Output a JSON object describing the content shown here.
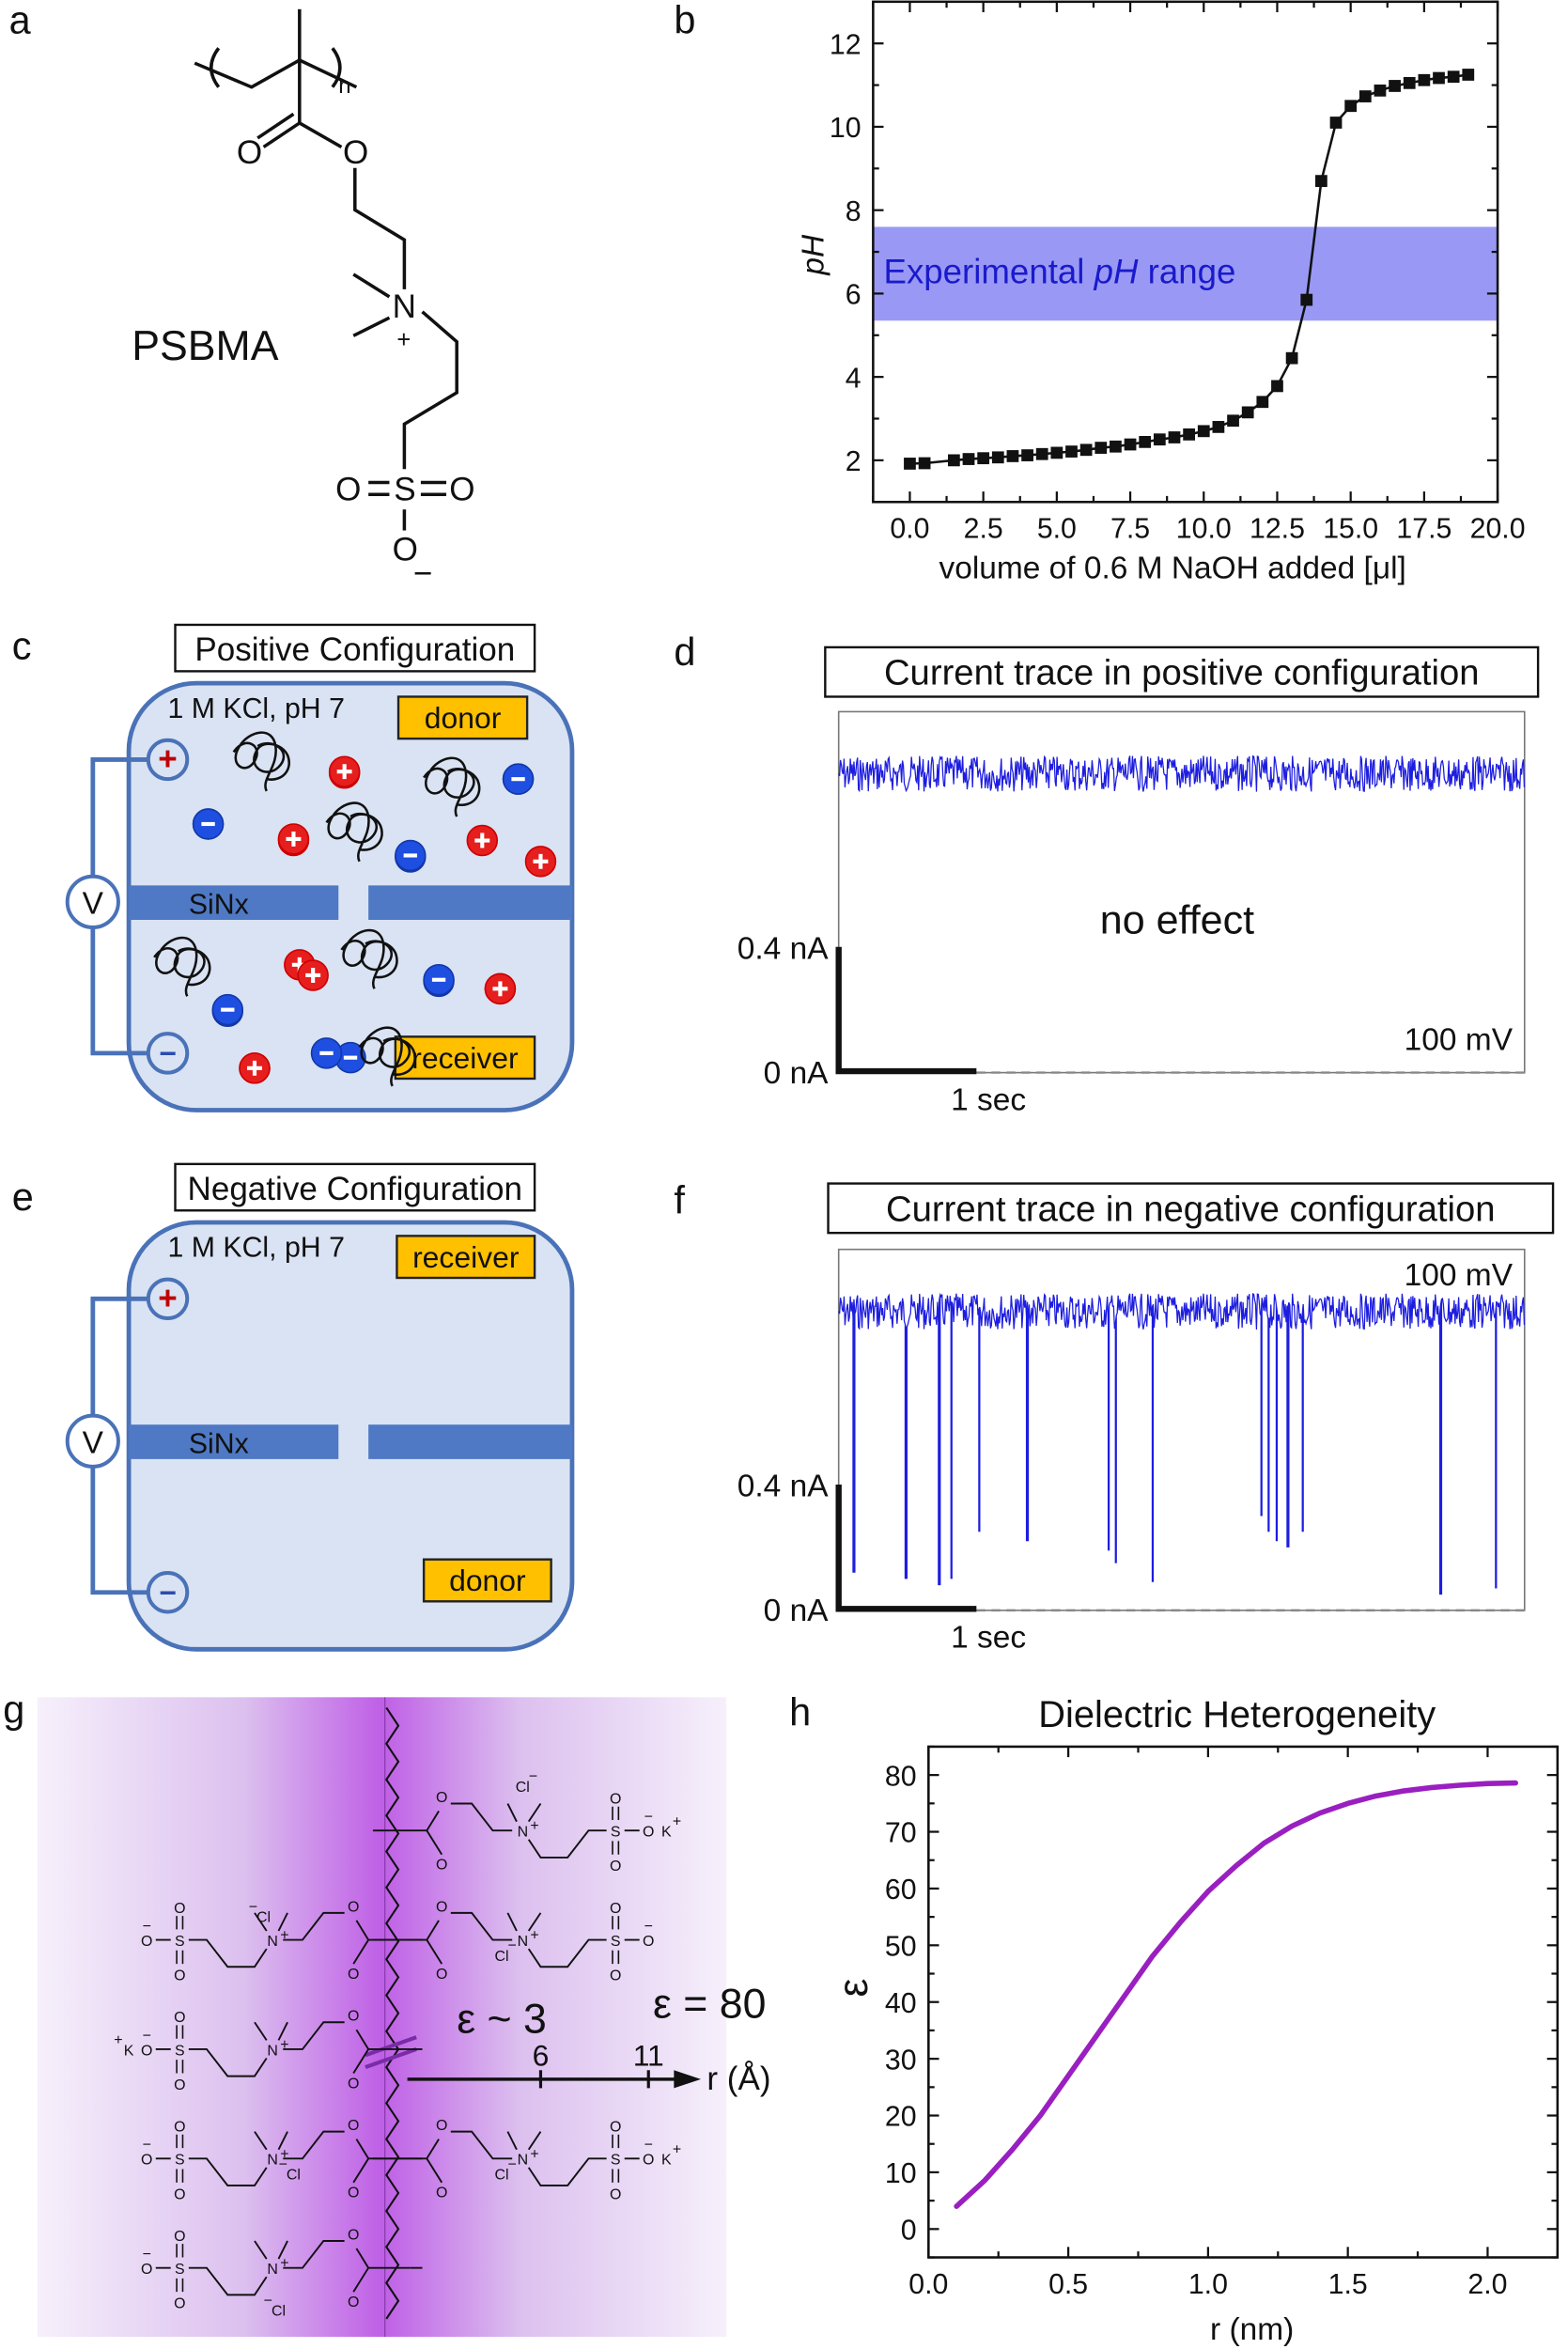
{
  "panel_labels": {
    "a": "a",
    "b": "b",
    "c": "c",
    "d": "d",
    "e": "e",
    "f": "f",
    "g": "g",
    "h": "h"
  },
  "panel_a": {
    "name": "PSBMA",
    "atoms": {
      "O_carbonyl": "O",
      "O_ester": "O",
      "N": "N",
      "N_charge": "+",
      "S": "S",
      "O_left": "O",
      "O_right": "O",
      "O_bottom": "O",
      "O_charge": "−",
      "repeat": "n"
    }
  },
  "panel_c": {
    "title": "Positive Configuration",
    "solution": "1 M KCl, pH 7",
    "top_chamber": "donor",
    "bottom_chamber": "receiver",
    "membrane": "SiNx",
    "voltmeter": "V",
    "electrode_top": "+",
    "electrode_bottom": "−"
  },
  "panel_d": {
    "title": "Current trace in positive configuration",
    "annotation": "no effect",
    "voltage": "100 mV",
    "scale_current_top": "0.4 nA",
    "scale_current_zero": "0 nA",
    "scale_time": "1 sec",
    "open_pore_current_nA": 0.95,
    "event_times_s": []
  },
  "panel_e": {
    "title": "Negative Configuration",
    "solution": "1 M KCl, pH 7",
    "top_chamber": "receiver",
    "bottom_chamber": "donor",
    "membrane": "SiNx",
    "voltmeter": "V",
    "electrode_top": "+",
    "electrode_bottom": "−"
  },
  "panel_f": {
    "title": "Current trace in negative configuration",
    "voltage": "100 mV",
    "scale_current_top": "0.4 nA",
    "scale_current_zero": "0 nA",
    "scale_time": "1 sec",
    "open_pore_current_nA": 0.95,
    "events": [
      {
        "t": 0.11,
        "min_nA": 0.12
      },
      {
        "t": 0.49,
        "min_nA": 0.1
      },
      {
        "t": 0.73,
        "min_nA": 0.08
      },
      {
        "t": 0.82,
        "min_nA": 0.1
      },
      {
        "t": 1.02,
        "min_nA": 0.25
      },
      {
        "t": 1.37,
        "min_nA": 0.22
      },
      {
        "t": 1.96,
        "min_nA": 0.19
      },
      {
        "t": 2.01,
        "min_nA": 0.15
      },
      {
        "t": 2.28,
        "min_nA": 0.09
      },
      {
        "t": 3.07,
        "min_nA": 0.3
      },
      {
        "t": 3.12,
        "min_nA": 0.25
      },
      {
        "t": 3.18,
        "min_nA": 0.22
      },
      {
        "t": 3.26,
        "min_nA": 0.2
      },
      {
        "t": 3.37,
        "min_nA": 0.25
      },
      {
        "t": 4.37,
        "min_nA": 0.05
      },
      {
        "t": 4.77,
        "min_nA": 0.07
      }
    ]
  },
  "panel_g": {
    "eps_inner": "ε ~ 3",
    "eps_outer": "ε = 80",
    "axis_label": "r (Å)",
    "axis_ticks": [
      "6",
      "11"
    ],
    "atoms": {
      "O": "O",
      "N": "N",
      "S": "S",
      "plus": "+",
      "minus": "−"
    },
    "chains": [
      {
        "side": "right",
        "counterions": [
          "Cl",
          "K"
        ]
      },
      {
        "side": "left",
        "counterions": [
          "Cl"
        ]
      },
      {
        "side": "right",
        "counterions": [
          "Cl"
        ]
      },
      {
        "side": "left",
        "counterions": [
          "K"
        ]
      },
      {
        "side": "left",
        "counterions": [
          "Cl"
        ]
      },
      {
        "side": "right",
        "counterions": [
          "Cl",
          "K"
        ]
      },
      {
        "side": "left",
        "counterions": [
          "Cl"
        ]
      }
    ],
    "counterion_labels": {
      "Cl": "Cl",
      "K": "K"
    },
    "colors": {
      "gradient_center": "#bf5fe6",
      "gradient_edge": "#f6f0fb",
      "counterion_cl": "#2222bb",
      "counterion_k": "#dd2222"
    }
  },
  "chart_data": [
    {
      "id": "b",
      "type": "line",
      "xlabel": "volume of 0.6 M NaOH added [μl]",
      "ylabel": "pH",
      "xlim": [
        -1.25,
        20
      ],
      "ylim": [
        1,
        13
      ],
      "xticks": [
        "0.0",
        "2.5",
        "5.0",
        "7.5",
        "10.0",
        "12.5",
        "15.0",
        "17.5",
        "20.0"
      ],
      "yticks": [
        "2",
        "4",
        "6",
        "8",
        "10",
        "12"
      ],
      "band": {
        "label_pre": "Experimental ",
        "label_italic": "pH",
        "label_post": " range",
        "y_range": [
          5.35,
          7.6
        ],
        "color": "#9999f5"
      },
      "marker": "square",
      "x": [
        0,
        0.5,
        1.5,
        2,
        2.5,
        3,
        3.5,
        4,
        4.5,
        5,
        5.5,
        6,
        6.5,
        7,
        7.5,
        8,
        8.5,
        9,
        9.5,
        10,
        10.5,
        11,
        11.5,
        12,
        12.5,
        13,
        13.5,
        14,
        14.5,
        15,
        15.5,
        16,
        16.5,
        17,
        17.5,
        18,
        18.5,
        19
      ],
      "y": [
        1.92,
        1.93,
        2.0,
        2.03,
        2.05,
        2.07,
        2.1,
        2.12,
        2.15,
        2.18,
        2.21,
        2.25,
        2.3,
        2.33,
        2.38,
        2.44,
        2.5,
        2.55,
        2.62,
        2.7,
        2.8,
        2.95,
        3.15,
        3.4,
        3.78,
        4.45,
        5.85,
        8.7,
        10.1,
        10.5,
        10.73,
        10.87,
        10.98,
        11.05,
        11.12,
        11.17,
        11.2,
        11.25
      ]
    },
    {
      "id": "h",
      "type": "line",
      "title": "Dielectric Heterogeneity",
      "xlabel": "r (nm)",
      "ylabel": "ε",
      "xlim": [
        0,
        2.25
      ],
      "ylim": [
        -5,
        85
      ],
      "xticks": [
        "0.0",
        "0.5",
        "1.0",
        "1.5",
        "2.0"
      ],
      "yticks": [
        "0",
        "10",
        "20",
        "30",
        "40",
        "50",
        "60",
        "70",
        "80"
      ],
      "color": "#9a1fc0",
      "x": [
        0.1,
        0.2,
        0.3,
        0.4,
        0.5,
        0.6,
        0.7,
        0.8,
        0.9,
        1.0,
        1.1,
        1.2,
        1.3,
        1.4,
        1.5,
        1.6,
        1.7,
        1.8,
        1.9,
        2.0,
        2.1
      ],
      "y": [
        4,
        8.5,
        14,
        20,
        27,
        34,
        41,
        48,
        54,
        59.5,
        64,
        68,
        71,
        73.3,
        75,
        76.3,
        77.2,
        77.8,
        78.2,
        78.5,
        78.6
      ]
    }
  ]
}
